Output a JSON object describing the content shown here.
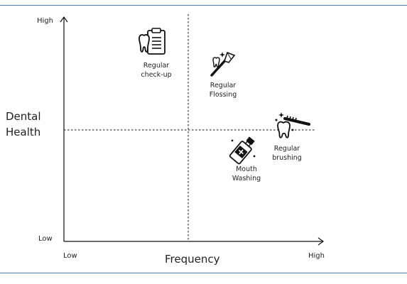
{
  "axes": {
    "y_high": "High",
    "y_low": "Low",
    "y_title_line1": "Dental",
    "y_title_line2": "Health",
    "x_low": "Low",
    "x_high": "High",
    "x_title": "Frequency"
  },
  "items": [
    {
      "line1": "Regular",
      "line2": "check-up",
      "icon": "dental-clipboard-icon"
    },
    {
      "line1": "Regular",
      "line2": "Flossing",
      "icon": "floss-pick-icon"
    },
    {
      "line1": "Regular",
      "line2": "brushing",
      "icon": "tooth-brush-icon"
    },
    {
      "line1": "Mouth",
      "line2": "Washing",
      "icon": "mouthwash-bottle-icon"
    }
  ]
}
